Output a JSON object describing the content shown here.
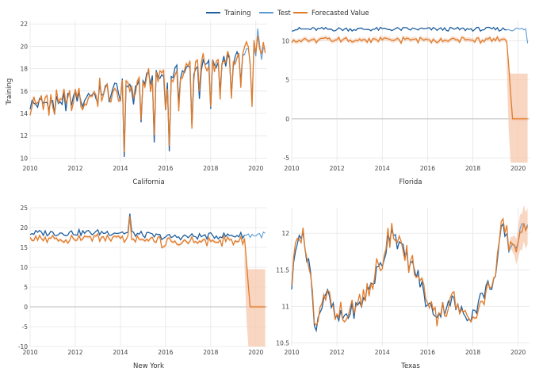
{
  "legend": [
    {
      "label": "Training",
      "color": "#1f5f9e"
    },
    {
      "label": "Test",
      "color": "#5b9bd5"
    },
    {
      "label": "Forecasted Value",
      "color": "#e07b2a"
    }
  ],
  "band_color": "#f6c8ad",
  "chart_data": [
    {
      "type": "line",
      "title": "California",
      "ylabel": "Training",
      "xlim": [
        2010,
        2020.5
      ],
      "ylim": [
        9.6,
        22.3
      ],
      "xticks": [
        2010,
        2012,
        2014,
        2016,
        2018,
        2020
      ],
      "yticks": [
        10,
        12,
        14,
        16,
        18,
        20,
        22
      ],
      "base": [
        [
          2010,
          14.8
        ],
        [
          2011,
          15.0
        ],
        [
          2012,
          15.4
        ],
        [
          2013,
          15.9
        ],
        [
          2014,
          16.4
        ],
        [
          2015,
          16.9
        ],
        [
          2016,
          17.4
        ],
        [
          2017,
          17.9
        ],
        [
          2018,
          18.3
        ],
        [
          2019,
          18.8
        ],
        [
          2020.4,
          19.6
        ]
      ],
      "amp": 0.7,
      "dips": [
        [
          2011.1,
          13.9
        ],
        [
          2011.6,
          14.2
        ],
        [
          2012.3,
          14.6
        ],
        [
          2013.0,
          14.9
        ],
        [
          2013.5,
          15.0
        ],
        [
          2014.0,
          15.1
        ],
        [
          2014.2,
          10.1
        ],
        [
          2014.6,
          14.8
        ],
        [
          2014.9,
          13.2
        ],
        [
          2015.5,
          11.4
        ],
        [
          2016.0,
          14.3
        ],
        [
          2016.2,
          10.6
        ],
        [
          2016.6,
          14.9
        ],
        [
          2017.2,
          12.9
        ],
        [
          2017.5,
          15.3
        ],
        [
          2018.0,
          14.4
        ],
        [
          2018.4,
          15.9
        ],
        [
          2018.9,
          15.6
        ],
        [
          2019.3,
          16.8
        ],
        [
          2019.8,
          14.5
        ]
      ],
      "forecast_start": 2010.0,
      "forecast_shift": 0,
      "forecast_band": 0.2,
      "train_end": 2019.55,
      "test_end": 2020.45,
      "test_overrides": [
        [
          2019.8,
          15.0
        ],
        [
          2020.1,
          21.6
        ],
        [
          2020.25,
          18.8
        ]
      ],
      "forecast_tail": null
    },
    {
      "type": "line",
      "title": "Florida",
      "ylabel": "",
      "xlim": [
        2010,
        2020.5
      ],
      "ylim": [
        -5.6,
        12.6
      ],
      "xticks": [
        2010,
        2012,
        2014,
        2016,
        2018,
        2020
      ],
      "yticks": [
        -5,
        0,
        5,
        10
      ],
      "base": [
        [
          2010,
          11.5
        ],
        [
          2020.4,
          11.5
        ]
      ],
      "amp": 0.25,
      "dips": [],
      "forecast_start": 2010.0,
      "forecast_shift": -1.4,
      "forecast_band": 0.3,
      "train_end": 2019.55,
      "test_end": 2020.45,
      "test_overrides": [
        [
          2020.4,
          9.7
        ]
      ],
      "forecast_tail": {
        "start": 2019.5,
        "to": 0,
        "band_upper": 5.8,
        "band_lower": -5.6,
        "end": 2020.45
      }
    },
    {
      "type": "line",
      "title": "New York",
      "ylabel": "",
      "xlim": [
        2010,
        2020.5
      ],
      "ylim": [
        -10,
        25
      ],
      "xticks": [
        2010,
        2012,
        2014,
        2016,
        2018,
        2020
      ],
      "yticks": [
        -10,
        -5,
        0,
        5,
        10,
        15,
        20,
        25
      ],
      "base": [
        [
          2010,
          18.6
        ],
        [
          2014,
          18.8
        ],
        [
          2016,
          17.6
        ],
        [
          2020.4,
          18.2
        ]
      ],
      "amp": 0.8,
      "dips": [
        [
          2014.4,
          23.5
        ]
      ],
      "forecast_start": 2010.0,
      "forecast_shift": -1.4,
      "forecast_band": 0.4,
      "train_end": 2019.55,
      "test_end": 2020.45,
      "test_overrides": [],
      "forecast_tail": {
        "start": 2019.5,
        "to": 0,
        "band_upper": 9.5,
        "band_lower": -10,
        "end": 2020.45
      }
    },
    {
      "type": "line",
      "title": "Texas",
      "ylabel": "",
      "xlim": [
        2010,
        2020.5
      ],
      "ylim": [
        10.45,
        12.35
      ],
      "xticks": [
        2010,
        2012,
        2014,
        2016,
        2018,
        2020
      ],
      "yticks": [
        10.5,
        11,
        11.5,
        12
      ],
      "base": [
        [
          2010.0,
          11.3
        ],
        [
          2010.3,
          12.1
        ],
        [
          2010.8,
          11.6
        ],
        [
          2011.0,
          10.7
        ],
        [
          2011.5,
          11.2
        ],
        [
          2012.0,
          10.8
        ],
        [
          2012.5,
          10.9
        ],
        [
          2013.0,
          11.0
        ],
        [
          2013.5,
          11.3
        ],
        [
          2014.0,
          11.6
        ],
        [
          2014.4,
          12.1
        ],
        [
          2014.8,
          11.8
        ],
        [
          2015.2,
          11.6
        ],
        [
          2015.6,
          11.4
        ],
        [
          2016.0,
          11.0
        ],
        [
          2016.5,
          10.9
        ],
        [
          2017.0,
          11.1
        ],
        [
          2017.5,
          10.9
        ],
        [
          2018.0,
          10.9
        ],
        [
          2018.5,
          11.2
        ],
        [
          2019.0,
          11.4
        ],
        [
          2019.3,
          12.1
        ],
        [
          2019.6,
          11.8
        ],
        [
          2020.0,
          11.9
        ],
        [
          2020.4,
          12.2
        ]
      ],
      "amp": 0.12,
      "dips": [],
      "forecast_start": 2010.0,
      "forecast_shift": 0,
      "forecast_band": 0.02,
      "train_end": 2019.55,
      "test_end": 2020.45,
      "test_overrides": [],
      "forecast_tail": {
        "start": 2019.6,
        "to": null,
        "band_upper": 0.25,
        "band_lower": -0.25,
        "end": 2020.45
      }
    }
  ]
}
